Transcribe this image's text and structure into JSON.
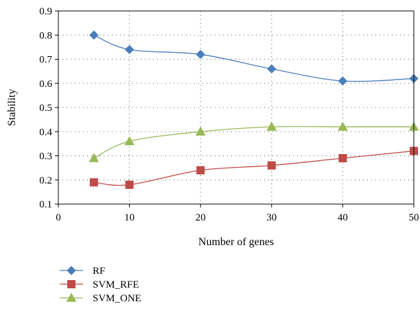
{
  "chart_data": {
    "type": "line",
    "xlabel": "Number of genes",
    "ylabel": "Stability",
    "xlim": [
      0,
      50
    ],
    "ylim": [
      0.1,
      0.9
    ],
    "x_ticks": [
      0,
      10,
      20,
      30,
      40,
      50
    ],
    "y_ticks": [
      0.1,
      0.2,
      0.3,
      0.4,
      0.5,
      0.6,
      0.7,
      0.8,
      0.9
    ],
    "x": [
      5,
      10,
      20,
      30,
      40,
      50
    ],
    "grid": "dotted",
    "legend_position": "bottom-left",
    "series": [
      {
        "name": "RF",
        "color": "#4a7ebb",
        "marker": "diamond",
        "values": [
          0.8,
          0.74,
          0.72,
          0.66,
          0.61,
          0.62
        ]
      },
      {
        "name": "SVM_RFE",
        "color": "#be4b48",
        "marker": "square",
        "values": [
          0.19,
          0.18,
          0.24,
          0.26,
          0.29,
          0.32
        ]
      },
      {
        "name": "SVM_ONE",
        "color": "#98b954",
        "marker": "triangle",
        "values": [
          0.29,
          0.36,
          0.4,
          0.42,
          0.42,
          0.42
        ]
      }
    ]
  }
}
